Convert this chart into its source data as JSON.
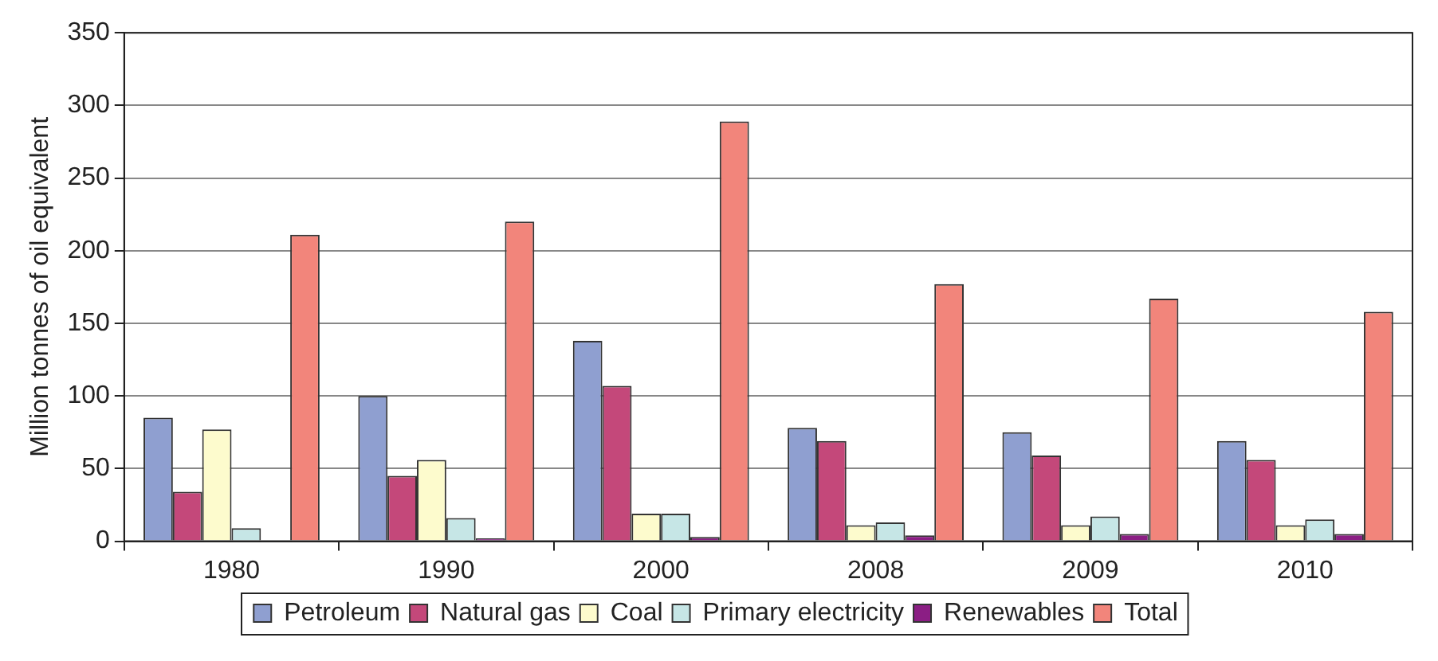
{
  "chart_data": {
    "type": "bar",
    "ylabel": "Million tonnes of oil equivalent",
    "categories": [
      "1980",
      "1990",
      "2000",
      "2008",
      "2009",
      "2010"
    ],
    "series": [
      {
        "name": "Petroleum",
        "color": "#8f9fd0",
        "values": [
          85,
          100,
          138,
          78,
          75,
          69
        ]
      },
      {
        "name": "Natural gas",
        "color": "#c4487a",
        "values": [
          34,
          45,
          107,
          69,
          59,
          56
        ]
      },
      {
        "name": "Coal",
        "color": "#fdfbcd",
        "values": [
          77,
          56,
          19,
          11,
          11,
          11
        ]
      },
      {
        "name": "Primary electricity",
        "color": "#c6e6e6",
        "values": [
          9,
          16,
          19,
          13,
          17,
          15
        ]
      },
      {
        "name": "Renewables",
        "color": "#8b1e84",
        "values": [
          0,
          2,
          3,
          4,
          5,
          5
        ]
      },
      {
        "name": "Total",
        "color": "#f2857b",
        "values": [
          211,
          220,
          289,
          177,
          167,
          158
        ]
      }
    ],
    "ylim": [
      0,
      350
    ],
    "yticks": [
      0,
      50,
      100,
      150,
      200,
      250,
      300,
      350
    ],
    "grid": "y",
    "legend": "bottom"
  }
}
